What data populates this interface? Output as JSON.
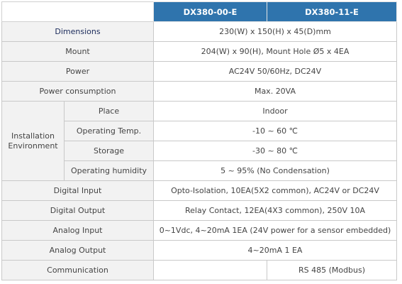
{
  "header": {
    "col1": "DX380-00-E",
    "col2": "DX380-11-E"
  },
  "rows": {
    "dimensions": {
      "label": "Dimensions",
      "value": "230(W) x 150(H) x 45(D)mm"
    },
    "mount": {
      "label": "Mount",
      "value": "204(W) x 90(H), Mount Hole Ø5 x 4EA"
    },
    "power": {
      "label": "Power",
      "value": "AC24V 50/60Hz, DC24V"
    },
    "power_consumption": {
      "label": "Power consumption",
      "value": "Max. 20VA"
    },
    "installation": {
      "label_line1": "Installation",
      "label_line2": "Environment",
      "place": {
        "label": "Place",
        "value": "Indoor"
      },
      "operating_temp": {
        "label": "Operating Temp.",
        "value": "-10 ~ 60 ℃"
      },
      "storage": {
        "label": "Storage",
        "value": "-30 ~ 80 ℃"
      },
      "operating_humidity": {
        "label": "Operating humidity",
        "value": "5 ~ 95% (No Condensation)"
      }
    },
    "digital_input": {
      "label": "Digital Input",
      "value": "Opto-Isolation, 10EA(5X2 common), AC24V or DC24V"
    },
    "digital_output": {
      "label": "Digital Output",
      "value": "Relay Contact, 12EA(4X3 common), 250V 10A"
    },
    "analog_input": {
      "label": "Analog Input",
      "value": "0~1Vdc, 4~20mA 1EA (24V power for a sensor embedded)"
    },
    "analog_output": {
      "label": "Analog Output",
      "value": "4~20mA 1 EA"
    },
    "communication": {
      "label": "Communication",
      "value_col1": "",
      "value_col2": "RS 485 (Modbus)"
    }
  }
}
